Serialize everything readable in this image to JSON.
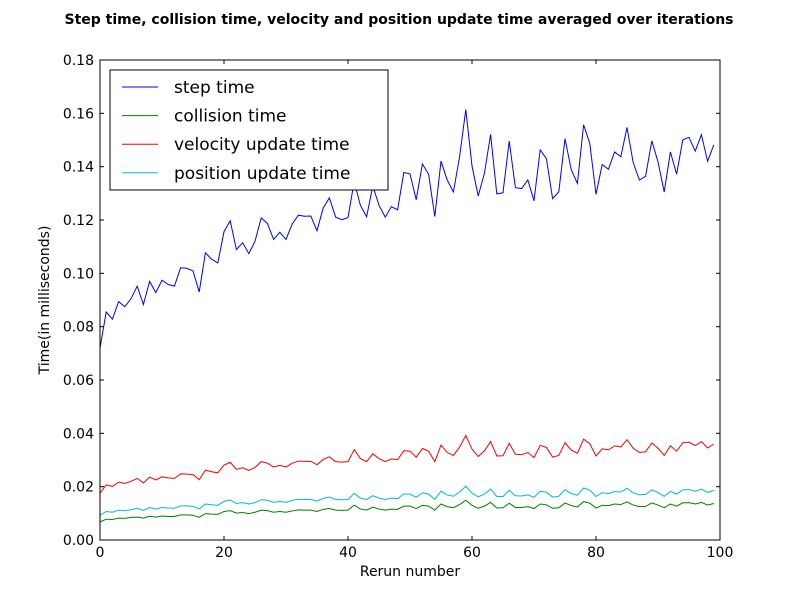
{
  "chart_data": {
    "type": "line",
    "title": "Step time, collision time, velocity and position update time averaged over iterations",
    "xlabel": "Rerun number",
    "ylabel": "Time(in milliseconds)",
    "xlim": [
      0,
      100
    ],
    "ylim": [
      0,
      0.18
    ],
    "xticks": [
      "0",
      "20",
      "40",
      "60",
      "80",
      "100"
    ],
    "yticks": [
      "0.00",
      "0.02",
      "0.04",
      "0.06",
      "0.08",
      "0.10",
      "0.12",
      "0.14",
      "0.16",
      "0.18"
    ],
    "grid": false,
    "legend_position": "top-left",
    "x": [
      0,
      1,
      2,
      3,
      4,
      5,
      6,
      7,
      8,
      9,
      10,
      11,
      12,
      13,
      14,
      15,
      16,
      17,
      18,
      19,
      20,
      21,
      22,
      23,
      24,
      25,
      26,
      27,
      28,
      29,
      30,
      31,
      32,
      33,
      34,
      35,
      36,
      37,
      38,
      39,
      40,
      41,
      42,
      43,
      44,
      45,
      46,
      47,
      48,
      49,
      50,
      51,
      52,
      53,
      54,
      55,
      56,
      57,
      58,
      59,
      60,
      61,
      62,
      63,
      64,
      65,
      66,
      67,
      68,
      69,
      70,
      71,
      72,
      73,
      74,
      75,
      76,
      77,
      78,
      79,
      80,
      81,
      82,
      83,
      84,
      85,
      86,
      87,
      88,
      89,
      90,
      91,
      92,
      93,
      94,
      95,
      96,
      97,
      98,
      99
    ],
    "series": [
      {
        "name": "step time",
        "color": "#0000ff",
        "values": [
          0.072,
          0.0855,
          0.0828,
          0.0894,
          0.0875,
          0.0905,
          0.0952,
          0.0883,
          0.097,
          0.0928,
          0.0974,
          0.0958,
          0.0952,
          0.1021,
          0.1019,
          0.1009,
          0.093,
          0.1077,
          0.1053,
          0.1039,
          0.1156,
          0.1197,
          0.1089,
          0.1115,
          0.1074,
          0.112,
          0.1208,
          0.1187,
          0.1127,
          0.1154,
          0.1127,
          0.1185,
          0.1218,
          0.1214,
          0.1215,
          0.116,
          0.1245,
          0.1283,
          0.1211,
          0.1201,
          0.1209,
          0.1345,
          0.1255,
          0.1212,
          0.1328,
          0.1255,
          0.1211,
          0.125,
          0.1238,
          0.1378,
          0.1373,
          0.1276,
          0.141,
          0.1372,
          0.1213,
          0.1421,
          0.135,
          0.1305,
          0.1438,
          0.1614,
          0.1403,
          0.129,
          0.1375,
          0.1521,
          0.1298,
          0.1302,
          0.1496,
          0.1321,
          0.1318,
          0.135,
          0.1272,
          0.1463,
          0.143,
          0.128,
          0.1306,
          0.1505,
          0.1389,
          0.1337,
          0.1557,
          0.1487,
          0.1296,
          0.1408,
          0.139,
          0.1455,
          0.1437,
          0.1547,
          0.1415,
          0.135,
          0.1364,
          0.1497,
          0.1418,
          0.1305,
          0.1455,
          0.1372,
          0.1501,
          0.151,
          0.1458,
          0.152,
          0.142,
          0.1482
        ]
      },
      {
        "name": "collision time",
        "color": "#008000",
        "values": [
          0.0068,
          0.0078,
          0.0077,
          0.0082,
          0.0081,
          0.0085,
          0.0086,
          0.0082,
          0.0089,
          0.0086,
          0.009,
          0.0088,
          0.0088,
          0.0094,
          0.0094,
          0.0093,
          0.0085,
          0.0099,
          0.0097,
          0.0096,
          0.0107,
          0.011,
          0.0101,
          0.0103,
          0.0099,
          0.0104,
          0.0112,
          0.011,
          0.0104,
          0.0107,
          0.0104,
          0.0109,
          0.0113,
          0.0112,
          0.0112,
          0.0107,
          0.0115,
          0.0118,
          0.0112,
          0.0111,
          0.0112,
          0.0131,
          0.0116,
          0.0112,
          0.0123,
          0.0116,
          0.0112,
          0.0116,
          0.0115,
          0.0127,
          0.0127,
          0.0118,
          0.013,
          0.0127,
          0.0112,
          0.0135,
          0.0125,
          0.0121,
          0.0133,
          0.0149,
          0.013,
          0.0119,
          0.0127,
          0.0141,
          0.012,
          0.0121,
          0.0138,
          0.0122,
          0.0122,
          0.0125,
          0.0118,
          0.0135,
          0.0132,
          0.0119,
          0.0121,
          0.0139,
          0.0129,
          0.0124,
          0.0144,
          0.0138,
          0.012,
          0.013,
          0.0129,
          0.0135,
          0.0133,
          0.0143,
          0.0131,
          0.0125,
          0.0126,
          0.0139,
          0.0131,
          0.0121,
          0.0135,
          0.0127,
          0.0139,
          0.014,
          0.0135,
          0.0141,
          0.0131,
          0.0137
        ]
      },
      {
        "name": "velocity update time",
        "color": "#ff0000",
        "values": [
          0.0175,
          0.0207,
          0.0201,
          0.0217,
          0.0212,
          0.022,
          0.0231,
          0.0214,
          0.0236,
          0.0225,
          0.0237,
          0.0233,
          0.0231,
          0.0248,
          0.0247,
          0.0245,
          0.0226,
          0.0262,
          0.0256,
          0.0252,
          0.0281,
          0.0291,
          0.0265,
          0.0271,
          0.0261,
          0.0272,
          0.0294,
          0.0288,
          0.0274,
          0.028,
          0.0274,
          0.0288,
          0.0296,
          0.0295,
          0.0295,
          0.0282,
          0.0302,
          0.0312,
          0.0294,
          0.0292,
          0.0294,
          0.0339,
          0.0305,
          0.0294,
          0.0323,
          0.0305,
          0.0294,
          0.0304,
          0.0301,
          0.0335,
          0.0333,
          0.031,
          0.0343,
          0.0333,
          0.0294,
          0.0356,
          0.0328,
          0.0317,
          0.0349,
          0.0392,
          0.0341,
          0.0313,
          0.0334,
          0.0369,
          0.0315,
          0.0316,
          0.0363,
          0.0321,
          0.032,
          0.0328,
          0.0309,
          0.0355,
          0.0347,
          0.0311,
          0.0317,
          0.0365,
          0.0337,
          0.0325,
          0.0378,
          0.0361,
          0.0315,
          0.0342,
          0.0338,
          0.0353,
          0.0349,
          0.0376,
          0.0344,
          0.0328,
          0.0331,
          0.0364,
          0.0344,
          0.0317,
          0.0353,
          0.0333,
          0.0365,
          0.0367,
          0.0354,
          0.0369,
          0.0345,
          0.036
        ]
      },
      {
        "name": "position update time",
        "color": "#00bfbf",
        "values": [
          0.0093,
          0.0107,
          0.0104,
          0.0112,
          0.011,
          0.0113,
          0.0119,
          0.0111,
          0.0122,
          0.0116,
          0.0122,
          0.012,
          0.0119,
          0.0128,
          0.0128,
          0.0126,
          0.0117,
          0.0135,
          0.0132,
          0.013,
          0.0145,
          0.015,
          0.0137,
          0.014,
          0.0135,
          0.014,
          0.0151,
          0.0149,
          0.0141,
          0.0145,
          0.0141,
          0.0149,
          0.0153,
          0.0152,
          0.0152,
          0.0146,
          0.0156,
          0.0161,
          0.0152,
          0.0151,
          0.0152,
          0.0175,
          0.0157,
          0.0152,
          0.0166,
          0.0157,
          0.0152,
          0.0157,
          0.0155,
          0.0173,
          0.0172,
          0.016,
          0.0177,
          0.0172,
          0.0152,
          0.0183,
          0.0169,
          0.0164,
          0.018,
          0.0202,
          0.0176,
          0.0162,
          0.0172,
          0.0191,
          0.0163,
          0.0163,
          0.0187,
          0.0166,
          0.0165,
          0.0169,
          0.016,
          0.0183,
          0.0179,
          0.0161,
          0.0164,
          0.0189,
          0.0174,
          0.0168,
          0.0195,
          0.0187,
          0.0163,
          0.0177,
          0.0174,
          0.0182,
          0.018,
          0.0194,
          0.0177,
          0.0169,
          0.0171,
          0.0188,
          0.0178,
          0.0164,
          0.0182,
          0.0172,
          0.0188,
          0.0189,
          0.0183,
          0.0191,
          0.0178,
          0.0186
        ]
      }
    ]
  }
}
